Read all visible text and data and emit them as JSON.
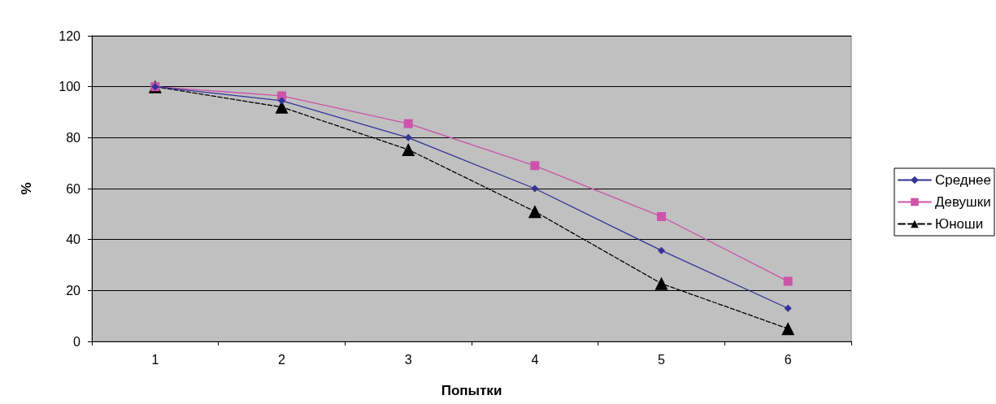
{
  "chart_data": {
    "type": "line",
    "xlabel": "Попытки",
    "ylabel": "%",
    "categories": [
      "1",
      "2",
      "3",
      "4",
      "5",
      "6"
    ],
    "series": [
      {
        "name": "Среднее",
        "color": "#333399",
        "marker": "diamond",
        "line_style": "solid",
        "values": [
          100,
          94.5,
          80,
          60,
          35.7,
          13
        ]
      },
      {
        "name": "Девушки",
        "color": "#cc55aa",
        "marker": "square",
        "line_style": "solid",
        "values": [
          100,
          96.4,
          85.5,
          69,
          49,
          23.6
        ]
      },
      {
        "name": "Юноши",
        "color": "#000000",
        "marker": "triangle",
        "line_style": "dashed",
        "values": [
          100,
          92,
          75.3,
          51,
          22.7,
          5
        ]
      }
    ],
    "ylim": [
      0,
      120
    ],
    "yticks": [
      0,
      20,
      40,
      60,
      80,
      100,
      120
    ],
    "grid": "y",
    "legend": "right"
  }
}
